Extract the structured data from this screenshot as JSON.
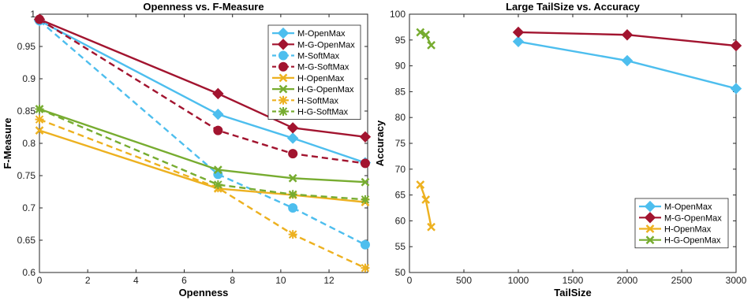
{
  "chart_data": [
    {
      "type": "line",
      "title": "Openness vs. F-Measure",
      "xlabel": "Openness",
      "ylabel": "F-Measure",
      "xlim": [
        0,
        13.6
      ],
      "ylim": [
        0.6,
        1.0
      ],
      "xticks": [
        0,
        2,
        4,
        6,
        8,
        10,
        12
      ],
      "yticks": [
        0.6,
        0.65,
        0.7,
        0.75,
        0.8,
        0.85,
        0.9,
        0.95,
        1
      ],
      "grid": false,
      "legend_position": "top-right",
      "series": [
        {
          "name": "M-OpenMax",
          "color": "#4dbeee",
          "style": "solid",
          "marker": "diamond",
          "x": [
            0,
            7.4,
            10.5,
            13.5
          ],
          "y": [
            0.99,
            0.845,
            0.808,
            0.77
          ]
        },
        {
          "name": "M-G-OpenMax",
          "color": "#a2142f",
          "style": "solid",
          "marker": "diamond",
          "x": [
            0,
            7.4,
            10.5,
            13.5
          ],
          "y": [
            0.992,
            0.877,
            0.824,
            0.81
          ]
        },
        {
          "name": "M-SoftMax",
          "color": "#4dbeee",
          "style": "dashed",
          "marker": "circle",
          "x": [
            0,
            7.4,
            10.5,
            13.5
          ],
          "y": [
            0.99,
            0.752,
            0.7,
            0.643
          ]
        },
        {
          "name": "M-G-SoftMax",
          "color": "#a2142f",
          "style": "dashed",
          "marker": "circle",
          "x": [
            0,
            7.4,
            10.5,
            13.5
          ],
          "y": [
            0.992,
            0.82,
            0.784,
            0.769
          ]
        },
        {
          "name": "H-OpenMax",
          "color": "#edb120",
          "style": "solid",
          "marker": "cross",
          "x": [
            0,
            7.4,
            10.5,
            13.5
          ],
          "y": [
            0.82,
            0.73,
            0.72,
            0.709
          ]
        },
        {
          "name": "H-G-OpenMax",
          "color": "#77ac30",
          "style": "solid",
          "marker": "cross",
          "x": [
            0,
            7.4,
            10.5,
            13.5
          ],
          "y": [
            0.853,
            0.759,
            0.746,
            0.74
          ]
        },
        {
          "name": "H-SoftMax",
          "color": "#edb120",
          "style": "dashed",
          "marker": "star",
          "x": [
            0,
            7.4,
            10.5,
            13.5
          ],
          "y": [
            0.837,
            0.731,
            0.659,
            0.607
          ]
        },
        {
          "name": "H-G-SoftMax",
          "color": "#77ac30",
          "style": "dashed",
          "marker": "star",
          "x": [
            0,
            7.4,
            10.5,
            13.5
          ],
          "y": [
            0.853,
            0.736,
            0.721,
            0.713
          ]
        }
      ]
    },
    {
      "type": "line",
      "title": "Large TailSize vs. Accuracy",
      "xlabel": "TailSize",
      "ylabel": "Accuracy",
      "xlim": [
        0,
        3000
      ],
      "ylim": [
        50,
        100
      ],
      "xticks": [
        0,
        500,
        1000,
        1500,
        2000,
        2500,
        3000
      ],
      "yticks": [
        50,
        55,
        60,
        65,
        70,
        75,
        80,
        85,
        90,
        95,
        100
      ],
      "grid": false,
      "legend_position": "bottom-right",
      "series": [
        {
          "name": "M-OpenMax",
          "color": "#4dbeee",
          "style": "solid",
          "marker": "diamond",
          "x": [
            1000,
            2000,
            3000
          ],
          "y": [
            94.7,
            91.0,
            85.6
          ]
        },
        {
          "name": "M-G-OpenMax",
          "color": "#a2142f",
          "style": "solid",
          "marker": "diamond",
          "x": [
            1000,
            2000,
            3000
          ],
          "y": [
            96.5,
            96.0,
            93.9
          ]
        },
        {
          "name": "H-OpenMax",
          "color": "#edb120",
          "style": "solid",
          "marker": "cross",
          "x": [
            100,
            150,
            200
          ],
          "y": [
            67.0,
            64.1,
            58.8
          ]
        },
        {
          "name": "H-G-OpenMax",
          "color": "#77ac30",
          "style": "solid",
          "marker": "cross",
          "x": [
            100,
            150,
            200
          ],
          "y": [
            96.5,
            96.0,
            94.0
          ]
        }
      ]
    }
  ]
}
